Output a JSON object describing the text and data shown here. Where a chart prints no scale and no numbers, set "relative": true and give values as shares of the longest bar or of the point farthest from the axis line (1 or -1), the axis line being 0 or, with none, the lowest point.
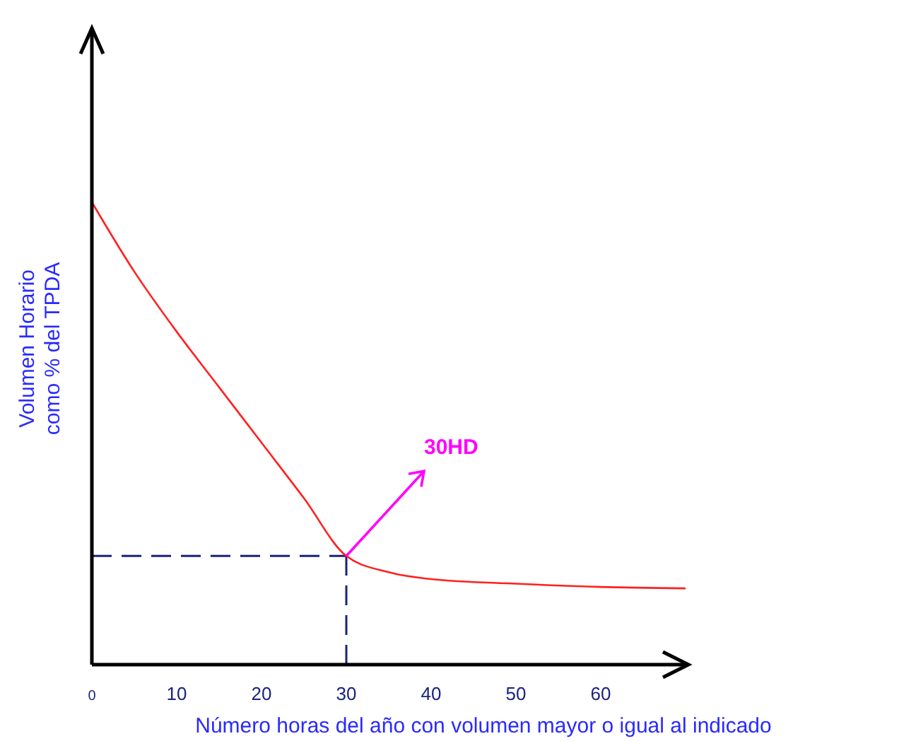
{
  "chart_data": {
    "type": "line",
    "relative": true,
    "xlabel": "Número horas del año con volumen mayor o igual al indicado",
    "ylabel": "Volumen Horario\ncomo % del TPDA",
    "xlim": [
      0,
      70
    ],
    "xticks": [
      0,
      10,
      20,
      30,
      40,
      50,
      60
    ],
    "grid": false,
    "marker": "none",
    "line_style": "solid",
    "series": [
      {
        "color": "#ff2020",
        "x": [
          0,
          5,
          10,
          15,
          20,
          25,
          30,
          35,
          40,
          50,
          60,
          70
        ],
        "values": [
          1,
          0.85,
          0.72,
          0.6,
          0.48,
          0.36,
          0.235,
          0.2,
          0.185,
          0.175,
          0.168,
          0.165
        ]
      }
    ],
    "ref_lines": [
      {
        "axis": "x",
        "value": 30,
        "color": "#1a237e",
        "line_style": "dashed"
      },
      {
        "axis": "y",
        "value": 0.235,
        "color": "#1a237e",
        "line_style": "dashed"
      }
    ],
    "annotations": [
      {
        "text": "30HD",
        "x": 30,
        "y": 0.235
      }
    ]
  }
}
